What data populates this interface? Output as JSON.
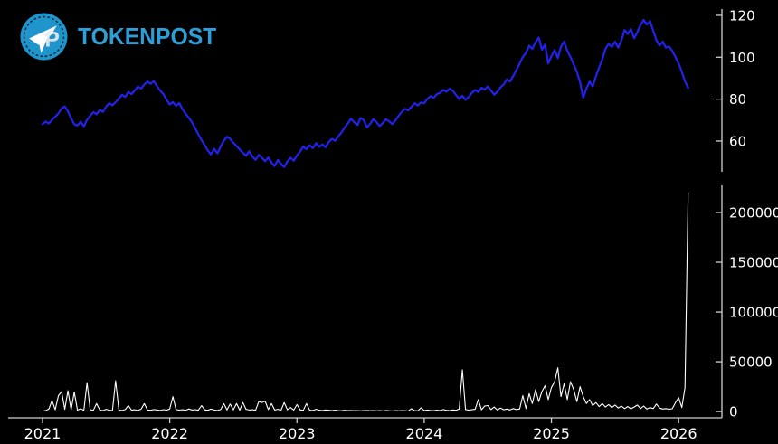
{
  "brand": {
    "name": "TOKENPOST",
    "monogram": "TP",
    "badge_color": "#1f95cb",
    "badge_ring_color": "#0d2f42",
    "text_color": "#2d9fd8"
  },
  "colors": {
    "background": "#000000",
    "price_line": "#2222ee",
    "volume_line": "#ffffff",
    "axis": "#d0d0d0",
    "tick_label": "#ffffff"
  },
  "chart_data": [
    {
      "type": "line",
      "name": "price",
      "legend": null,
      "grid": false,
      "axis_position": "right",
      "line_color_key": "price_line",
      "line_width": 2.2,
      "x_start": 2021.0,
      "x_step": 0.025,
      "xlim": [
        2020.73,
        2026.34
      ],
      "ylim": [
        45.3,
        123.0
      ],
      "yticks": {
        "values": [
          60,
          80,
          100,
          120
        ],
        "labels": [
          "60",
          "80",
          "100",
          "120"
        ]
      },
      "values": [
        68.0,
        69.3,
        68.4,
        70.1,
        71.6,
        73.2,
        75.6,
        76.5,
        74.2,
        70.8,
        68.0,
        67.4,
        69.2,
        67.0,
        70.1,
        72.0,
        73.8,
        72.8,
        74.9,
        73.9,
        76.4,
        78.0,
        77.1,
        78.6,
        80.2,
        82.1,
        81.0,
        83.4,
        82.4,
        84.1,
        86.0,
        85.0,
        87.0,
        88.4,
        87.3,
        88.6,
        86.2,
        84.0,
        82.4,
        79.8,
        77.4,
        78.6,
        76.8,
        78.1,
        75.2,
        73.0,
        71.1,
        69.0,
        66.2,
        63.1,
        60.4,
        58.0,
        55.4,
        53.6,
        56.2,
        54.1,
        57.3,
        60.1,
        62.0,
        61.0,
        59.2,
        57.6,
        55.9,
        54.4,
        53.0,
        55.1,
        52.6,
        51.0,
        53.4,
        52.0,
        50.4,
        52.1,
        49.6,
        48.0,
        51.0,
        49.0,
        47.6,
        50.2,
        52.0,
        50.6,
        53.1,
        55.0,
        57.4,
        56.1,
        58.0,
        56.6,
        59.0,
        57.2,
        58.4,
        57.0,
        59.6,
        61.0,
        60.1,
        62.2,
        64.1,
        66.4,
        68.4,
        70.6,
        69.0,
        67.6,
        71.0,
        70.0,
        66.6,
        68.1,
        70.4,
        69.0,
        67.1,
        68.6,
        70.4,
        69.4,
        68.1,
        70.0,
        72.1,
        74.0,
        75.4,
        74.6,
        76.4,
        78.0,
        77.0,
        78.4,
        78.0,
        80.1,
        81.4,
        80.6,
        82.4,
        83.0,
        84.4,
        83.6,
        85.0,
        84.0,
        82.0,
        80.1,
        81.6,
        79.6,
        81.0,
        83.0,
        84.4,
        83.4,
        85.4,
        84.6,
        86.0,
        84.1,
        82.1,
        83.6,
        85.6,
        87.0,
        89.4,
        88.4,
        91.0,
        94.0,
        97.0,
        100.1,
        102.0,
        105.5,
        104.0,
        107.2,
        109.4,
        103.6,
        106.0,
        97.0,
        100.5,
        103.4,
        99.6,
        105.0,
        107.4,
        103.0,
        100.1,
        96.6,
        93.0,
        88.1,
        80.6,
        85.0,
        88.4,
        86.0,
        91.0,
        95.1,
        99.0,
        104.0,
        106.4,
        105.0,
        107.4,
        104.6,
        108.0,
        113.0,
        111.1,
        113.4,
        109.1,
        112.0,
        115.4,
        117.8,
        115.6,
        117.3,
        112.6,
        108.1,
        105.6,
        107.4,
        104.6,
        105.1,
        103.0,
        100.1,
        97.0,
        93.0,
        88.5,
        85.3
      ]
    },
    {
      "type": "line",
      "name": "volume",
      "legend": null,
      "grid": false,
      "axis_position": "right",
      "line_color_key": "volume_line",
      "line_width": 1.1,
      "x_start": 2021.0,
      "x_step": 0.025,
      "xlim": [
        2020.73,
        2026.34
      ],
      "ylim": [
        -6300,
        227300
      ],
      "yticks": {
        "values": [
          0,
          50000,
          100000,
          150000,
          200000
        ],
        "labels": [
          "0",
          "50000",
          "100000",
          "150000",
          "200000"
        ]
      },
      "xticks": {
        "values": [
          2021,
          2022,
          2023,
          2024,
          2025,
          2026
        ],
        "labels": [
          "2021",
          "2022",
          "2023",
          "2024",
          "2025",
          "2026"
        ]
      },
      "values": [
        400,
        900,
        2500,
        11000,
        1800,
        16000,
        20000,
        2200,
        21000,
        1600,
        19500,
        1400,
        2800,
        1200,
        29000,
        1800,
        1200,
        8000,
        1500,
        1000,
        2200,
        1300,
        1000,
        31000,
        1500,
        1100,
        2000,
        6000,
        1300,
        1800,
        1100,
        2400,
        8000,
        1500,
        1200,
        2000,
        1600,
        1100,
        1900,
        1300,
        2500,
        15000,
        2000,
        1400,
        1800,
        1200,
        2600,
        1500,
        1900,
        1300,
        6000,
        1700,
        1200,
        2400,
        1500,
        1100,
        2000,
        8000,
        1600,
        7500,
        1800,
        8000,
        1400,
        9000,
        2200,
        1500,
        1800,
        1200,
        10000,
        9000,
        10500,
        2000,
        8000,
        1500,
        2200,
        1400,
        9000,
        1800,
        4000,
        1500,
        7000,
        1600,
        1200,
        8000,
        1400,
        1100,
        2200,
        1300,
        1000,
        1600,
        1200,
        900,
        1400,
        1000,
        800,
        1200,
        900,
        1100,
        800,
        1000,
        700,
        900,
        1100,
        800,
        1000,
        700,
        900,
        600,
        1100,
        800,
        600,
        900,
        700,
        1000,
        800,
        600,
        2800,
        900,
        700,
        3800,
        1000,
        1500,
        1100,
        900,
        1400,
        1000,
        2000,
        1200,
        1000,
        1600,
        1200,
        2500,
        42000,
        2000,
        1400,
        1800,
        2200,
        12000,
        1800,
        5500,
        6000,
        2000,
        4500,
        1500,
        3500,
        1800,
        2500,
        1600,
        3000,
        2000,
        2600,
        16000,
        3000,
        18000,
        8000,
        22000,
        10000,
        20000,
        26000,
        12000,
        24000,
        30000,
        44000,
        15000,
        28000,
        12000,
        30000,
        22000,
        10000,
        25000,
        15000,
        8000,
        12000,
        6000,
        9000,
        5000,
        8000,
        4500,
        7000,
        4000,
        6500,
        3500,
        5500,
        3000,
        5000,
        2800,
        4500,
        6500,
        3000,
        5500,
        2500,
        4000,
        3000,
        7500,
        3500,
        2500,
        3000,
        2200,
        2800,
        9000,
        14000,
        4000,
        24000,
        220000
      ]
    }
  ]
}
